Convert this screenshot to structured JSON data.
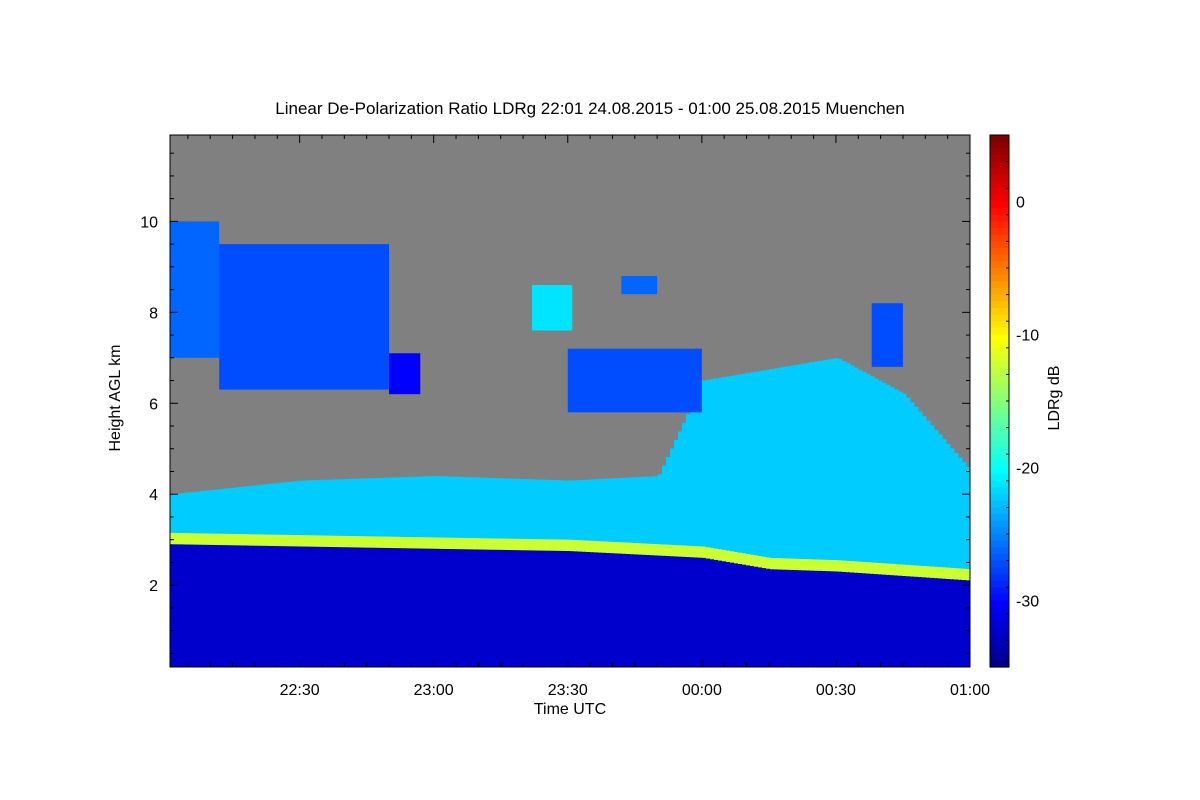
{
  "chart_data": {
    "type": "heatmap",
    "title": "Linear De-Polarization Ratio LDRg   22:01 24.08.2015 - 01:00 25.08.2015 Muenchen",
    "xlabel": "Time UTC",
    "ylabel": "Height AGL km",
    "colorbar_label": "LDRg dB",
    "x_range": [
      "22:01",
      "01:00"
    ],
    "x_ticks": [
      "22:30",
      "23:00",
      "23:30",
      "00:00",
      "00:30",
      "01:00"
    ],
    "ylim": [
      0.2,
      11.9
    ],
    "y_ticks": [
      "2",
      "4",
      "6",
      "8",
      "10"
    ],
    "clim": [
      -35,
      5
    ],
    "colorbar_ticks": [
      "0",
      "-10",
      "-20",
      "-30"
    ],
    "colormap": "jet",
    "no_signal_color": "#808080",
    "features": {
      "melting_layer": [
        {
          "time": "22:01",
          "height_km": 3.0
        },
        {
          "time": "22:30",
          "height_km": 2.95
        },
        {
          "time": "23:00",
          "height_km": 2.9
        },
        {
          "time": "23:30",
          "height_km": 2.85
        },
        {
          "time": "00:00",
          "height_km": 2.7
        },
        {
          "time": "00:15",
          "height_km": 2.45
        },
        {
          "time": "00:30",
          "height_km": 2.4
        },
        {
          "time": "01:00",
          "height_km": 2.2
        }
      ],
      "melting_layer_ldr_db": -12,
      "rain_ldr_db": -32,
      "ice_ldr_db": -22,
      "ice_top": [
        {
          "time": "22:01",
          "height_km": 4.0
        },
        {
          "time": "22:30",
          "height_km": 4.3
        },
        {
          "time": "23:00",
          "height_km": 4.4
        },
        {
          "time": "23:30",
          "height_km": 4.3
        },
        {
          "time": "23:50",
          "height_km": 4.4
        },
        {
          "time": "00:00",
          "height_km": 6.5
        },
        {
          "time": "00:30",
          "height_km": 7.0
        },
        {
          "time": "00:45",
          "height_km": 6.2
        },
        {
          "time": "01:00",
          "height_km": 4.5
        }
      ],
      "cirrus_patches": [
        {
          "t0": "22:01",
          "t1": "22:12",
          "h0_km": 7.0,
          "h1_km": 10.0,
          "ldr_db": -26
        },
        {
          "t0": "22:12",
          "t1": "22:50",
          "h0_km": 6.3,
          "h1_km": 9.5,
          "ldr_db": -27
        },
        {
          "t0": "22:50",
          "t1": "22:57",
          "h0_km": 6.2,
          "h1_km": 7.1,
          "ldr_db": -30
        },
        {
          "t0": "23:22",
          "t1": "23:31",
          "h0_km": 7.6,
          "h1_km": 8.6,
          "ldr_db": -21
        },
        {
          "t0": "23:42",
          "t1": "23:50",
          "h0_km": 8.4,
          "h1_km": 8.8,
          "ldr_db": -26
        },
        {
          "t0": "23:30",
          "t1": "00:00",
          "h0_km": 5.8,
          "h1_km": 7.2,
          "ldr_db": -27
        },
        {
          "t0": "00:38",
          "t1": "00:45",
          "h0_km": 6.8,
          "h1_km": 8.2,
          "ldr_db": -27
        }
      ]
    }
  }
}
